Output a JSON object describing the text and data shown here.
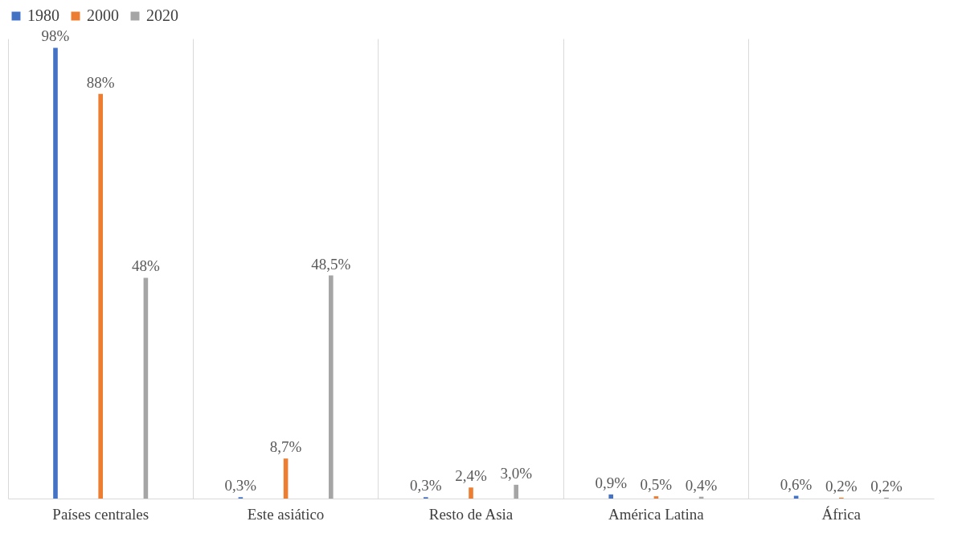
{
  "chart_data": {
    "type": "bar",
    "categories": [
      "Países centrales",
      "Este asiático",
      "Resto de Asia",
      "América Latina",
      "África"
    ],
    "series": [
      {
        "name": "1980",
        "color": "#4472c4",
        "values": [
          98,
          0.3,
          0.3,
          0.9,
          0.6
        ],
        "value_labels": [
          "98%",
          "0,3%",
          "0,3%",
          "0,9%",
          "0,6%"
        ]
      },
      {
        "name": "2000",
        "color": "#ed7d31",
        "values": [
          88,
          8.7,
          2.4,
          0.5,
          0.2
        ],
        "value_labels": [
          "88%",
          "8,7%",
          "2,4%",
          "0,5%",
          "0,2%"
        ]
      },
      {
        "name": "2020",
        "color": "#a5a5a5",
        "values": [
          48,
          48.5,
          3.0,
          0.4,
          0.2
        ],
        "value_labels": [
          "48%",
          "48,5%",
          "3,0%",
          "0,4%",
          "0,2%"
        ]
      }
    ],
    "legend": "top",
    "grid": "x"
  }
}
